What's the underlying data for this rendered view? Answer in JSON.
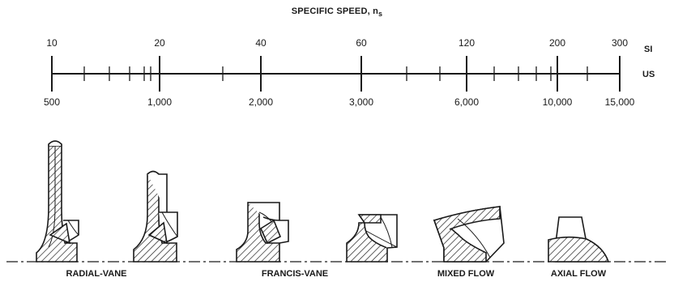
{
  "title": {
    "text": "SPECIFIC SPEED, n",
    "subscript": "s"
  },
  "scale": {
    "si_label": "SI",
    "us_label": "US",
    "si_ticks": [
      "10",
      "20",
      "40",
      "60",
      "120",
      "200",
      "300"
    ],
    "us_ticks": [
      "500",
      "1,000",
      "2,000",
      "3,000",
      "6,000",
      "10,000",
      "15,000"
    ]
  },
  "impeller_types": [
    "RADIAL-VANE",
    "FRANCIS-VANE",
    "MIXED FLOW",
    "AXIAL FLOW"
  ],
  "colors": {
    "ink": "#1a1a1a",
    "background": "#ffffff"
  }
}
